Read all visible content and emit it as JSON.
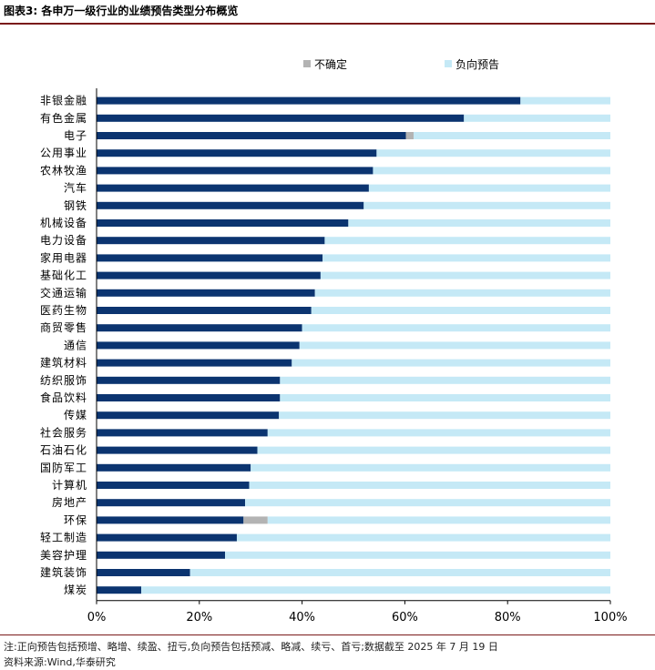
{
  "header": {
    "title": "图表3:  各申万一级行业的业绩预告类型分布概览"
  },
  "footer": {
    "note": "注:正向预告包括预增、略增、续盈、扭亏,负向预告包括预减、略减、续亏、首亏;数据截至 2025 年 7 月 19 日",
    "source": "资料来源:Wind,华泰研究"
  },
  "colors": {
    "positive": "#0b3470",
    "uncertain": "#b3b3b3",
    "negative": "#c5e9f6"
  },
  "chart_data": {
    "type": "bar",
    "orientation": "horizontal",
    "stacked": true,
    "percent_stacked": true,
    "categories": [
      "非银金融",
      "有色金属",
      "电子",
      "公用事业",
      "农林牧渔",
      "汽车",
      "钢铁",
      "机械设备",
      "电力设备",
      "家用电器",
      "基础化工",
      "交通运输",
      "医药生物",
      "商贸零售",
      "通信",
      "建筑材料",
      "纺织服饰",
      "食品饮料",
      "传媒",
      "社会服务",
      "石油石化",
      "国防军工",
      "计算机",
      "房地产",
      "环保",
      "轻工制造",
      "美容护理",
      "建筑装饰",
      "煤炭"
    ],
    "series": [
      {
        "values": [
          82.5,
          71.5,
          60.2,
          54.5,
          53.8,
          53.0,
          52.0,
          49.0,
          44.4,
          44.0,
          43.6,
          42.5,
          41.8,
          40.0,
          39.5,
          38.0,
          35.7,
          35.7,
          35.5,
          33.3,
          31.3,
          30.0,
          29.7,
          28.9,
          28.6,
          27.3,
          25.0,
          18.2,
          8.7
        ],
        "color": "#0b3470"
      },
      {
        "name": "不确定",
        "values": [
          0,
          0,
          1.5,
          0,
          0,
          0,
          0,
          0,
          0,
          0,
          0,
          0,
          0,
          0,
          0,
          0,
          0,
          0,
          0,
          0,
          0,
          0,
          0,
          0,
          4.7,
          0,
          0,
          0,
          0
        ],
        "color": "#b3b3b3"
      },
      {
        "name": "负向预告",
        "values": [
          17.5,
          28.5,
          38.3,
          45.5,
          46.2,
          47.0,
          48.0,
          51.0,
          55.6,
          56.0,
          56.4,
          57.5,
          58.2,
          60.0,
          60.5,
          62.0,
          64.3,
          64.3,
          64.5,
          66.7,
          68.7,
          70.0,
          70.3,
          71.1,
          66.7,
          72.7,
          75.0,
          81.8,
          91.3
        ],
        "color": "#c5e9f6"
      }
    ],
    "xlim": [
      0,
      100
    ],
    "xticks": [
      "0%",
      "20%",
      "40%",
      "60%",
      "80%",
      "100%"
    ],
    "legend": {
      "placement": "top-right",
      "items": [
        "不确定",
        "负向预告"
      ]
    },
    "grid": false
  }
}
